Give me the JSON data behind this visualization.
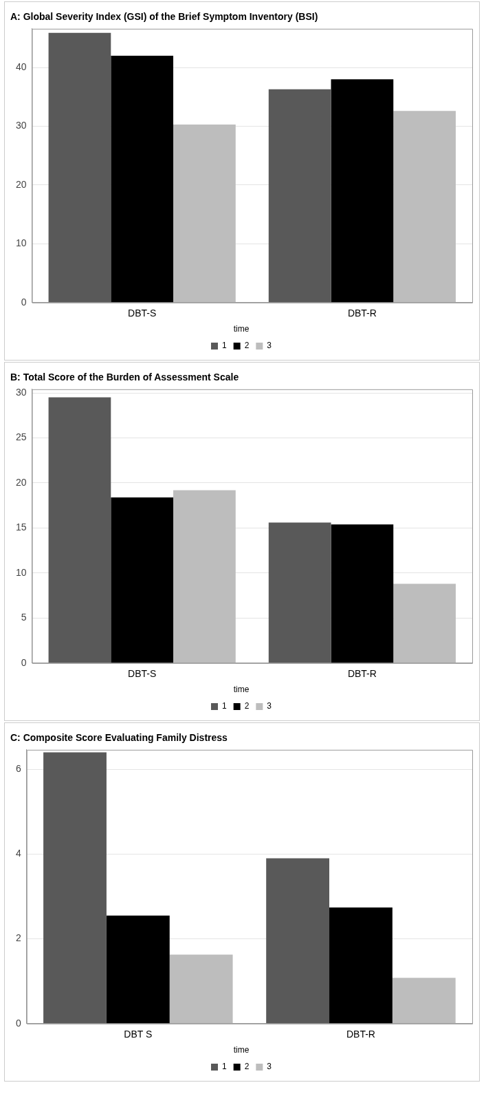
{
  "chart_data": [
    {
      "type": "bar",
      "title": "A: Global Severity Index (GSI) of the Brief Symptom Inventory (BSI)",
      "categories": [
        "DBT-S",
        "DBT-R"
      ],
      "legend_title": "time",
      "legend": "bottom",
      "series": [
        {
          "name": "1",
          "color": "#595959",
          "values": [
            45.9,
            36.3
          ]
        },
        {
          "name": "2",
          "color": "#000000",
          "values": [
            42.0,
            38.0
          ]
        },
        {
          "name": "3",
          "color": "#bdbdbd",
          "values": [
            30.3,
            32.6
          ]
        }
      ],
      "ylim": [
        0,
        46.6
      ],
      "yticks": [
        0,
        10,
        20,
        30,
        40
      ],
      "grid": "y"
    },
    {
      "type": "bar",
      "title": "B: Total Score of the Burden of Assessment Scale",
      "categories": [
        "DBT-S",
        "DBT-R"
      ],
      "legend_title": "time",
      "legend": "bottom",
      "series": [
        {
          "name": "1",
          "color": "#595959",
          "values": [
            29.5,
            15.6
          ]
        },
        {
          "name": "2",
          "color": "#000000",
          "values": [
            18.4,
            15.4
          ]
        },
        {
          "name": "3",
          "color": "#bdbdbd",
          "values": [
            19.2,
            8.8
          ]
        }
      ],
      "ylim": [
        0,
        30.4
      ],
      "yticks": [
        0,
        5,
        10,
        15,
        20,
        25,
        30
      ],
      "grid": "y"
    },
    {
      "type": "bar",
      "title": "C: Composite Score Evaluating Family Distress",
      "categories": [
        "DBT S",
        "DBT-R"
      ],
      "legend_title": "time",
      "legend": "bottom",
      "series": [
        {
          "name": "1",
          "color": "#595959",
          "values": [
            6.4,
            3.9
          ]
        },
        {
          "name": "2",
          "color": "#000000",
          "values": [
            2.55,
            2.74
          ]
        },
        {
          "name": "3",
          "color": "#bdbdbd",
          "values": [
            1.63,
            1.08
          ]
        }
      ],
      "ylim": [
        0,
        6.46
      ],
      "yticks": [
        0,
        2,
        4,
        6
      ],
      "grid": "y"
    }
  ]
}
